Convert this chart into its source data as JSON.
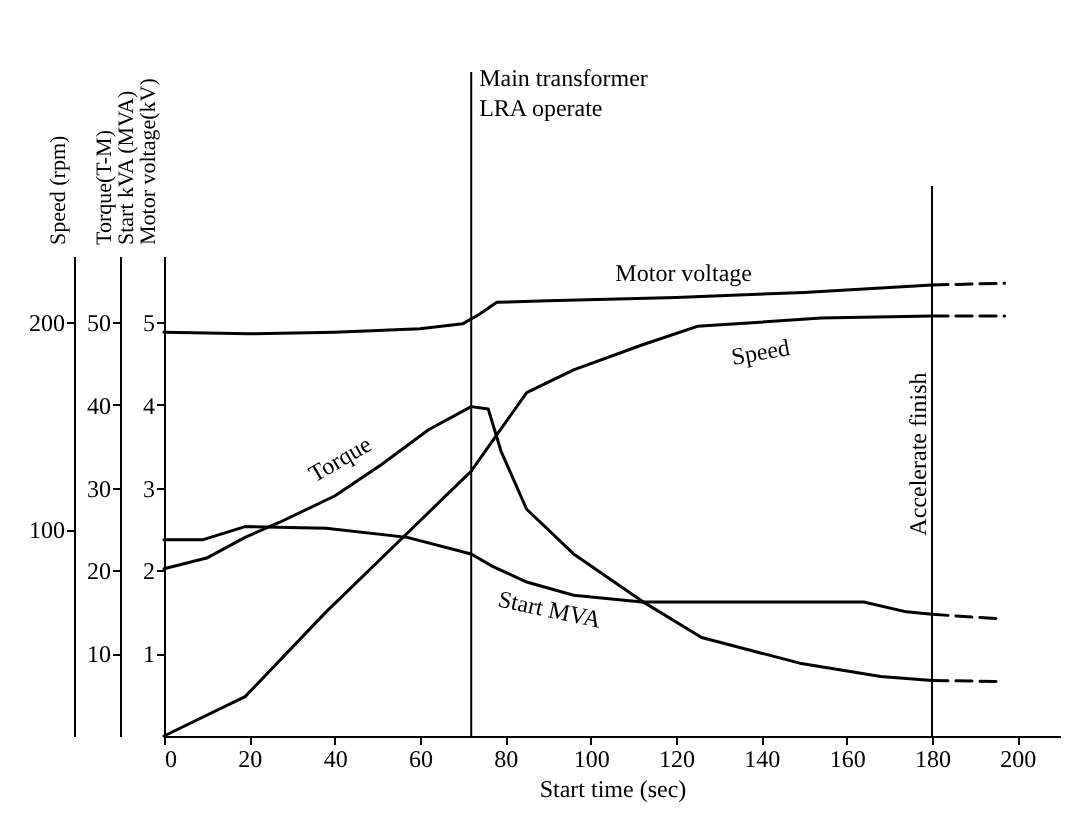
{
  "chart_data": {
    "type": "line",
    "xlabel": "Start time (sec)",
    "ylabel": "Motor voltage(kV)",
    "y2label": "Torque(T-M)\nStart kVA (MVA)",
    "y3label": "Speed (rpm)",
    "xlim": [
      0,
      210
    ],
    "xticks": [
      0,
      20,
      40,
      60,
      80,
      100,
      120,
      140,
      160,
      180,
      200
    ],
    "ylim": [
      0,
      5.8
    ],
    "yticks": [
      1,
      2,
      3,
      4,
      5
    ],
    "y2lim": [
      0,
      58
    ],
    "y2ticks": [
      10,
      20,
      30,
      40,
      50
    ],
    "y3lim": [
      0,
      232
    ],
    "y3ticks": [
      100,
      200
    ],
    "series": [
      {
        "name": "Motor voltage",
        "color": "#000000",
        "line_style": "solid",
        "x": [
          0,
          20,
          40,
          60,
          70,
          74,
          78,
          90,
          120,
          150,
          180
        ],
        "values": [
          4.88,
          4.86,
          4.88,
          4.92,
          4.98,
          5.1,
          5.24,
          5.26,
          5.3,
          5.36,
          5.45
        ]
      },
      {
        "color": "#000000",
        "line_style": "dashed",
        "x": [
          180,
          197
        ],
        "values": [
          5.45,
          5.47
        ]
      },
      {
        "name": "Speed",
        "color": "#000000",
        "line_style": "solid",
        "axis": "y3",
        "x": [
          0,
          19,
          38,
          57,
          72,
          85,
          96,
          112,
          125,
          154,
          180
        ],
        "values": [
          0,
          19,
          60,
          98,
          128,
          166,
          177,
          189,
          198,
          202,
          203
        ]
      },
      {
        "color": "#000000",
        "line_style": "dashed",
        "axis": "y3",
        "x": [
          180,
          197
        ],
        "values": [
          203,
          203
        ]
      },
      {
        "name": "Torque",
        "color": "#000000",
        "line_style": "solid",
        "axis": "y2",
        "x": [
          0,
          10,
          19,
          27,
          40,
          51,
          62,
          72,
          76,
          79,
          85,
          96,
          112,
          126,
          149,
          168,
          180
        ],
        "values": [
          20.2,
          21.5,
          24,
          25.8,
          29,
          32.8,
          37,
          39.8,
          39.5,
          34.4,
          27.4,
          22,
          16.3,
          11.9,
          8.8,
          7.2,
          6.7
        ]
      },
      {
        "color": "#000000",
        "line_style": "dashed",
        "axis": "y2",
        "x": [
          180,
          195
        ],
        "values": [
          6.7,
          6.6
        ]
      },
      {
        "name": "Start MVA",
        "color": "#000000",
        "line_style": "solid",
        "axis": "y2",
        "x": [
          0,
          9,
          19,
          38,
          57,
          72,
          77,
          85,
          96,
          112,
          164,
          174,
          180
        ],
        "values": [
          23.7,
          23.7,
          25.3,
          25.1,
          24,
          22,
          20.5,
          18.6,
          17,
          16.2,
          16.2,
          15,
          14.7
        ]
      },
      {
        "color": "#000000",
        "line_style": "dashed",
        "axis": "y2",
        "x": [
          180,
          195
        ],
        "values": [
          14.7,
          14.2
        ]
      }
    ],
    "ref_lines": [
      {
        "axis": "x",
        "value": 72,
        "label": "Main transformer\nLRA operate",
        "color": "#000000"
      },
      {
        "axis": "x",
        "value": 180,
        "label": "Accelerate finish",
        "color": "#000000"
      }
    ]
  }
}
